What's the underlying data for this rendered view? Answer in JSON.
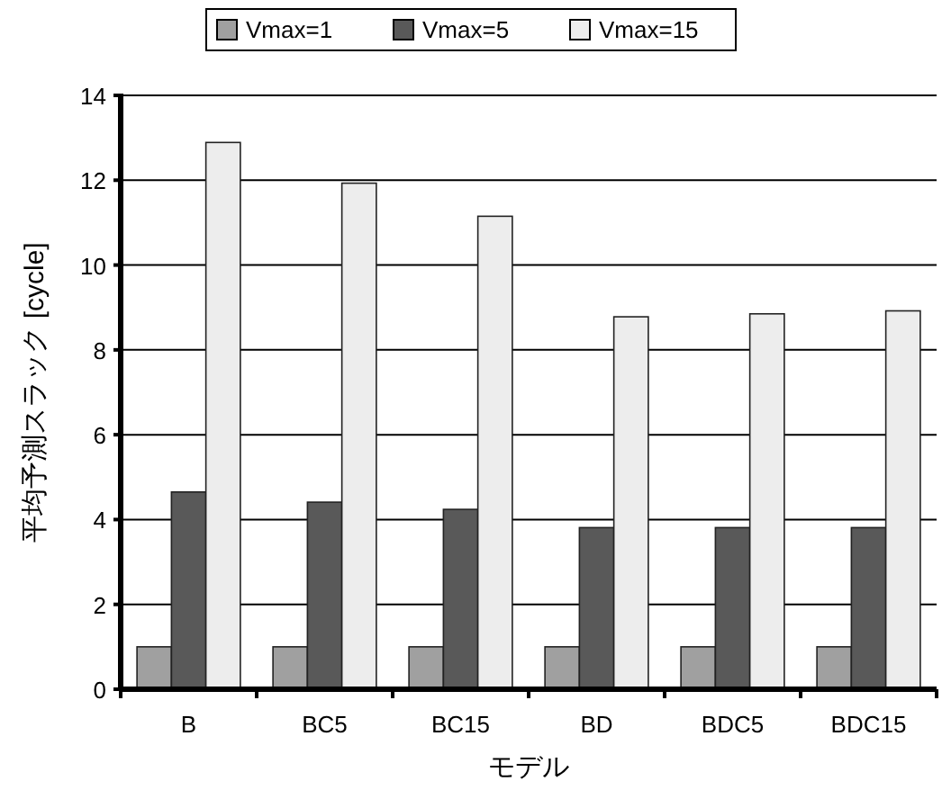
{
  "chart_data": {
    "type": "bar",
    "xlabel": "モデル",
    "ylabel": "平均予測スラック [cycle]",
    "categories": [
      "B",
      "BC5",
      "BC15",
      "BD",
      "BDC5",
      "BDC15"
    ],
    "series": [
      {
        "name": "Vmax=1",
        "color": "#a0a0a0",
        "values": [
          1.0,
          1.0,
          1.0,
          1.0,
          1.0,
          1.0
        ]
      },
      {
        "name": "Vmax=5",
        "color": "#595959",
        "values": [
          4.65,
          4.41,
          4.24,
          3.81,
          3.81,
          3.81
        ]
      },
      {
        "name": "Vmax=15",
        "color": "#ededed",
        "values": [
          12.89,
          11.93,
          11.15,
          8.78,
          8.85,
          8.92
        ]
      }
    ],
    "ylim": [
      0,
      14
    ],
    "yticks": [
      0,
      2,
      4,
      6,
      8,
      10,
      12,
      14
    ],
    "grid": "y",
    "legend": "top"
  }
}
